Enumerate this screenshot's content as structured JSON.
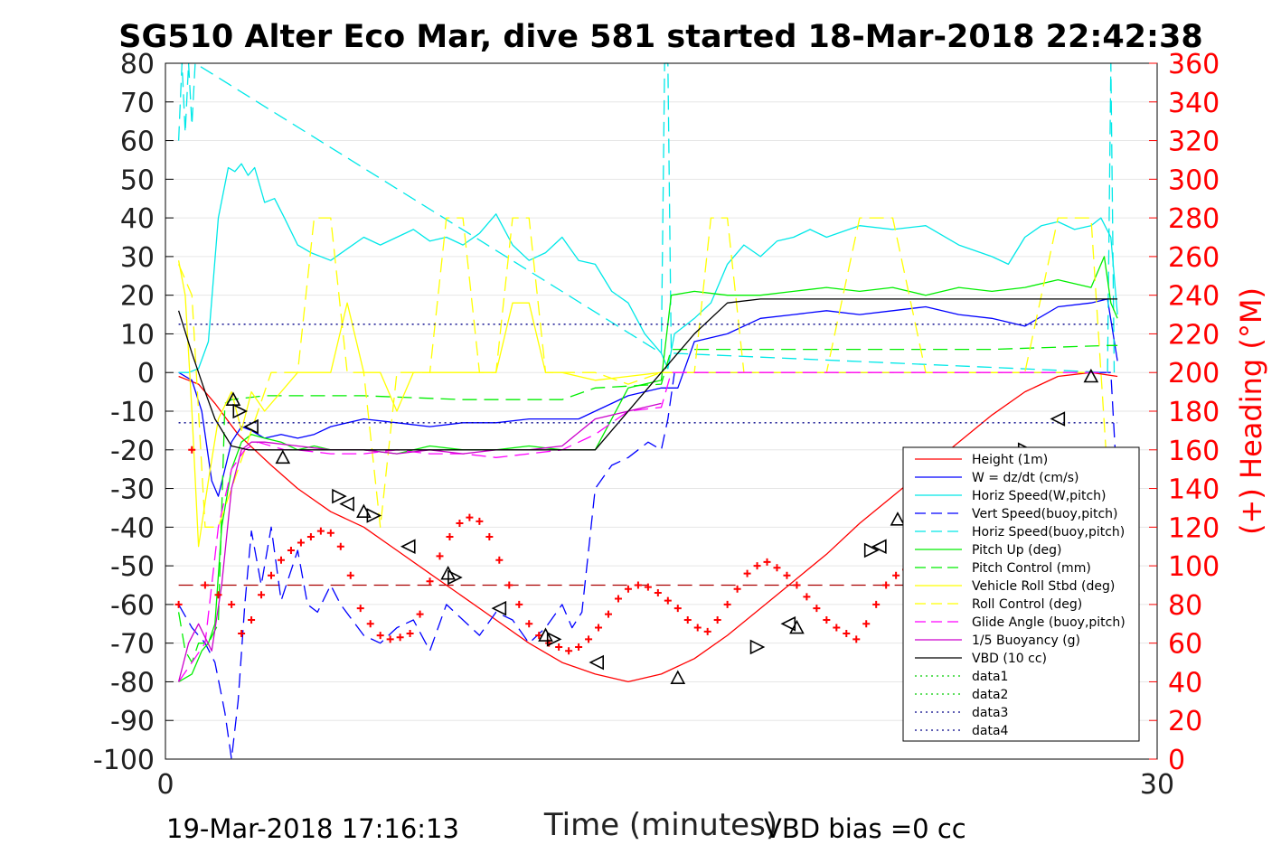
{
  "chart_data": {
    "type": "line",
    "title": "SG510 Alter Eco Mar, dive 581 started 18-Mar-2018 22:42:38",
    "xlabel": "Time (minutes)",
    "ylabel": "",
    "y2label": "(+) Heading (°M)",
    "xlim": [
      0,
      30
    ],
    "ylim": [
      -100,
      80
    ],
    "y2lim": [
      0,
      360
    ],
    "xticks": [
      0,
      30
    ],
    "yticks": [
      -100,
      -90,
      -80,
      -70,
      -60,
      -50,
      -40,
      -30,
      -20,
      -10,
      0,
      10,
      20,
      30,
      40,
      50,
      60,
      70,
      80
    ],
    "y2ticks": [
      0,
      20,
      40,
      60,
      80,
      100,
      120,
      140,
      160,
      180,
      200,
      220,
      240,
      260,
      280,
      300,
      320,
      340,
      360
    ],
    "grid": true,
    "legend_position": "bottom-right",
    "footer_left": "19-Mar-2018 17:16:13",
    "footer_right": "VBD bias =0 cc",
    "colors": {
      "red": "#ff0000",
      "blue": "#0000ff",
      "cyan": "#00ffff",
      "green": "#00ee00",
      "yellow": "#ffff00",
      "magenta": "#ff00ff",
      "black": "#000000",
      "darkred": "#aa0000"
    },
    "series": [
      {
        "name": "Height (1m)",
        "style": "solid",
        "color": "#ff0000",
        "x": [
          0.4,
          0.7,
          1.0,
          1.5,
          2.2,
          3.2,
          4.0,
          5.0,
          6.0,
          7.0,
          8.0,
          9.0,
          10.0,
          11.0,
          12.0,
          13.0,
          14.0,
          15.0,
          16.0,
          17.0,
          18.0,
          19.0,
          20.0,
          21.0,
          22.0,
          23.0,
          24.0,
          25.0,
          26.0,
          27.0,
          28.0,
          28.8
        ],
        "y": [
          -1,
          -2,
          -3,
          -8,
          -16,
          -24,
          -30,
          -36,
          -40,
          -46,
          -52,
          -58,
          -64,
          -70,
          -75,
          -78,
          -80,
          -78,
          -74,
          -68,
          -61,
          -54,
          -47,
          -39,
          -32,
          -25,
          -18,
          -11,
          -5,
          -1,
          0,
          -1
        ]
      },
      {
        "name": "W = dz/dt (cm/s)",
        "style": "solid",
        "color": "#0000ff",
        "x": [
          0.4,
          0.8,
          1.1,
          1.4,
          1.6,
          1.8,
          2.0,
          2.3,
          2.6,
          3.0,
          3.5,
          4.0,
          4.5,
          5.0,
          6.0,
          7.0,
          8.0,
          9.0,
          10.0,
          11.0,
          12.0,
          12.5,
          13.0,
          14.0,
          15.0,
          15.5,
          16.0,
          17.0,
          18.0,
          19.0,
          20.0,
          21.0,
          22.0,
          23.0,
          24.0,
          25.0,
          26.0,
          27.0,
          28.0,
          28.5,
          28.8
        ],
        "y": [
          0,
          -2,
          -10,
          -28,
          -32,
          -25,
          -18,
          -14,
          -15,
          -17,
          -16,
          -17,
          -16,
          -14,
          -12,
          -13,
          -14,
          -13,
          -13,
          -12,
          -12,
          -12,
          -10,
          -6,
          -4,
          -4,
          8,
          10,
          14,
          15,
          16,
          15,
          16,
          17,
          15,
          14,
          12,
          17,
          18,
          19,
          3
        ]
      },
      {
        "name": "Horiz Speed(W,pitch)",
        "style": "solid",
        "color": "#00e8e8",
        "x": [
          0.4,
          0.7,
          1.0,
          1.3,
          1.6,
          1.9,
          2.1,
          2.3,
          2.5,
          2.7,
          3.0,
          3.3,
          3.6,
          4.0,
          4.4,
          5.0,
          5.5,
          6.0,
          6.5,
          7.0,
          7.5,
          8.0,
          8.5,
          9.0,
          9.5,
          10.0,
          10.5,
          11.0,
          11.5,
          12.0,
          12.5,
          13.0,
          13.5,
          14.0,
          14.5,
          15.0,
          15.2,
          15.4,
          15.7,
          16.0,
          16.5,
          17.0,
          17.5,
          18.0,
          18.5,
          19.0,
          19.5,
          20.0,
          21.0,
          22.0,
          23.0,
          24.0,
          25.0,
          25.5,
          26.0,
          26.5,
          27.0,
          27.5,
          28.0,
          28.3,
          28.6,
          28.8
        ],
        "y": [
          0,
          0,
          1,
          8,
          40,
          53,
          52,
          54,
          51,
          53,
          44,
          45,
          40,
          33,
          31,
          29,
          32,
          35,
          33,
          35,
          37,
          34,
          35,
          33,
          36,
          41,
          33,
          29,
          31,
          35,
          29,
          28,
          21,
          18,
          10,
          5,
          1,
          10,
          12,
          14,
          18,
          28,
          33,
          30,
          34,
          35,
          37,
          35,
          38,
          37,
          38,
          33,
          30,
          28,
          35,
          38,
          39,
          37,
          38,
          40,
          35,
          15
        ]
      },
      {
        "name": "Vert Speed(buoy,pitch)",
        "style": "dashed",
        "color": "#0000ff",
        "x": [
          0.4,
          0.8,
          1.2,
          1.5,
          1.8,
          2.0,
          2.2,
          2.4,
          2.6,
          2.9,
          3.2,
          3.5,
          4.0,
          4.3,
          4.6,
          5.0,
          5.3,
          6.0,
          6.5,
          7.0,
          7.5,
          8.0,
          8.5,
          9.0,
          9.5,
          10.0,
          10.5,
          11.0,
          11.5,
          12.0,
          12.3,
          12.6,
          13.0,
          13.5,
          14.0,
          14.3,
          14.6,
          15.0,
          15.2,
          15.4,
          16.0,
          20.0,
          28.0,
          28.6,
          28.8
        ],
        "y": [
          -60,
          -66,
          -70,
          -75,
          -88,
          -100,
          -85,
          -60,
          -41,
          -55,
          -40,
          -59,
          -46,
          -60,
          -62,
          -55,
          -60,
          -68,
          -70,
          -66,
          -64,
          -72,
          -60,
          -64,
          -68,
          -62,
          -64,
          -70,
          -66,
          -60,
          -66,
          -62,
          -30,
          -24,
          -22,
          -20,
          -18,
          -20,
          -12,
          0,
          0,
          0,
          0,
          0,
          -31
        ]
      },
      {
        "name": "Horiz Speed(buoy,pitch)",
        "style": "dashed",
        "color": "#00e8e8",
        "x": [
          0.4,
          0.5,
          0.6,
          0.7,
          0.8,
          0.9,
          15.0,
          15.1,
          15.2,
          15.3,
          28.5,
          28.6,
          28.7
        ],
        "y": [
          60,
          80,
          62,
          80,
          64,
          80,
          5,
          80,
          80,
          5,
          0,
          80,
          0
        ]
      },
      {
        "name": "Pitch Up (deg)",
        "style": "solid",
        "color": "#00ee00",
        "x": [
          0.4,
          0.8,
          1.1,
          1.3,
          1.5,
          1.7,
          2.0,
          2.3,
          2.6,
          3.0,
          3.5,
          4.0,
          4.5,
          5.0,
          6.0,
          7.0,
          8.0,
          9.0,
          10.0,
          11.0,
          12.0,
          13.0,
          14.0,
          15.0,
          15.3,
          16.0,
          17.0,
          18.0,
          19.0,
          20.0,
          21.0,
          22.0,
          23.0,
          24.0,
          25.0,
          26.0,
          27.0,
          28.0,
          28.4,
          28.6,
          28.8
        ],
        "y": [
          -80,
          -78,
          -72,
          -70,
          -65,
          -40,
          -25,
          -18,
          -16,
          -17,
          -18,
          -20,
          -19,
          -20,
          -20,
          -21,
          -19,
          -20,
          -20,
          -19,
          -20,
          -20,
          -4,
          -2,
          20,
          21,
          20,
          20,
          21,
          22,
          21,
          22,
          20,
          22,
          21,
          22,
          24,
          22,
          30,
          18,
          14
        ]
      },
      {
        "name": "Pitch Control (mm)",
        "style": "dashed",
        "color": "#00ee00",
        "x": [
          0.4,
          0.6,
          0.8,
          1.0,
          1.3,
          1.6,
          1.8,
          2.0,
          3.0,
          6.0,
          9.0,
          12.0,
          13.0,
          15.0,
          15.3,
          16.0,
          20.0,
          25.0,
          28.5,
          28.8
        ],
        "y": [
          -62,
          -72,
          -75,
          -70,
          -70,
          -65,
          -8,
          -7,
          -6,
          -6,
          -7,
          -7,
          -4,
          -3,
          6,
          6,
          6,
          6,
          7,
          7
        ]
      },
      {
        "name": "Vehicle Roll Stbd (deg)",
        "style": "solid",
        "color": "#ffff00",
        "x": [
          0.4,
          0.6,
          0.8,
          1.0,
          1.3,
          1.6,
          2.0,
          2.3,
          2.6,
          3.0,
          4.0,
          5.0,
          5.5,
          6.0,
          6.5,
          7.0,
          7.5,
          8.0,
          9.0,
          10.0,
          10.5,
          11.0,
          11.5,
          12.0,
          13.0,
          14.0,
          15.0,
          16.0,
          20.0,
          24.0,
          28.0
        ],
        "y": [
          29,
          20,
          -10,
          -45,
          -28,
          -12,
          -5,
          -15,
          -5,
          -10,
          0,
          0,
          18,
          0,
          0,
          -10,
          0,
          0,
          0,
          0,
          18,
          18,
          0,
          0,
          -2,
          -1,
          0,
          0,
          0,
          0,
          0
        ]
      },
      {
        "name": "Roll Control (deg)",
        "style": "dashed",
        "color": "#ffff00",
        "x": [
          0.4,
          0.8,
          1.2,
          1.6,
          2.0,
          2.4,
          2.8,
          3.2,
          3.6,
          4.0,
          4.5,
          5.0,
          5.5,
          6.0,
          6.5,
          7.0,
          7.5,
          8.0,
          8.5,
          9.0,
          9.5,
          10.0,
          10.5,
          11.0,
          11.5,
          12.0,
          12.5,
          13.0,
          14.0,
          15.0,
          16.0,
          16.5,
          17.0,
          17.5,
          18.0,
          19.0,
          20.0,
          21.0,
          22.0,
          23.0,
          24.0,
          25.0,
          26.0,
          27.0,
          28.0,
          28.6
        ],
        "y": [
          28,
          20,
          -40,
          -40,
          -30,
          -20,
          -10,
          0,
          0,
          0,
          40,
          40,
          0,
          0,
          -40,
          0,
          0,
          0,
          40,
          40,
          0,
          0,
          40,
          40,
          0,
          0,
          0,
          0,
          -3,
          0,
          0,
          40,
          40,
          0,
          0,
          0,
          0,
          40,
          40,
          0,
          0,
          0,
          0,
          40,
          40,
          -40
        ]
      },
      {
        "name": "Glide Angle (buoy,pitch)",
        "style": "dashed",
        "color": "#ff00ff",
        "x": [
          0.4,
          0.8,
          1.2,
          1.6,
          2.0,
          2.4,
          2.8,
          3.2,
          3.6,
          4.0,
          5.0,
          6.0,
          7.0,
          8.0,
          9.0,
          10.0,
          11.0,
          12.0,
          13.0,
          14.0,
          15.0,
          15.3,
          16.0,
          20.0,
          25.0,
          28.5
        ],
        "y": [
          -80,
          -75,
          -70,
          -40,
          -25,
          -20,
          -18,
          -19,
          -20,
          -20,
          -21,
          -21,
          -20,
          -21,
          -21,
          -22,
          -21,
          -20,
          -16,
          -10,
          -9,
          0,
          0,
          0,
          0,
          0
        ]
      },
      {
        "name": "1/5 Buoyancy (g)",
        "style": "solid",
        "color": "#cc00cc",
        "x": [
          0.4,
          0.7,
          1.0,
          1.4,
          1.7,
          2.0,
          2.3,
          2.6,
          3.0,
          4.0,
          5.0,
          6.0,
          7.0,
          8.0,
          9.0,
          10.0,
          11.0,
          12.0,
          13.0,
          14.0,
          15.0
        ],
        "y": [
          -80,
          -70,
          -65,
          -72,
          -55,
          -30,
          -20,
          -18,
          -18,
          -19,
          -20,
          -20,
          -21,
          -20,
          -21,
          -20,
          -20,
          -19,
          -12,
          -10,
          -8
        ]
      },
      {
        "name": "VBD (10 cc)",
        "style": "solid",
        "color": "#000000",
        "x": [
          0.4,
          0.8,
          1.2,
          1.5,
          2.0,
          2.5,
          3.0,
          8.0,
          12.0,
          13.0,
          15.0,
          16.0,
          17.0,
          18.0,
          22.0,
          26.0,
          28.8
        ],
        "y": [
          16,
          5,
          -5,
          -12,
          -19,
          -20,
          -20,
          -20,
          -20,
          -20,
          0,
          10,
          18,
          19,
          19,
          19,
          19
        ]
      },
      {
        "name": "data1",
        "style": "dotted",
        "color": "#00cc00",
        "x": [],
        "y": []
      },
      {
        "name": "data2",
        "style": "dotted",
        "color": "#00cc00",
        "x": [],
        "y": []
      },
      {
        "name": "data3",
        "style": "dotted",
        "color": "#000088",
        "x": [
          0.4,
          28.8
        ],
        "y": [
          12.5,
          12.5
        ]
      },
      {
        "name": "data4",
        "style": "dotted",
        "color": "#000088",
        "x": [
          0.4,
          28.8
        ],
        "y": [
          -13,
          -13
        ]
      }
    ],
    "heading": {
      "axis": "right",
      "color": "#ff0000",
      "marker": "+",
      "x": [
        0.4,
        0.8,
        1.2,
        1.6,
        2.0,
        2.3,
        2.6,
        2.9,
        3.2,
        3.5,
        3.8,
        4.1,
        4.4,
        4.7,
        5.0,
        5.3,
        5.6,
        5.9,
        6.2,
        6.5,
        6.8,
        7.1,
        7.4,
        7.7,
        8.0,
        8.3,
        8.6,
        8.9,
        9.2,
        9.5,
        9.8,
        10.1,
        10.4,
        10.7,
        11.0,
        11.3,
        11.6,
        11.9,
        12.2,
        12.5,
        12.8,
        13.1,
        13.4,
        13.7,
        14.0,
        14.3,
        14.6,
        14.9,
        15.2,
        15.5,
        15.8,
        16.1,
        16.4,
        16.7,
        17.0,
        17.3,
        17.6,
        17.9,
        18.2,
        18.5,
        18.8,
        19.1,
        19.4,
        19.7,
        20.0,
        20.3,
        20.6,
        20.9,
        21.2,
        21.5,
        21.8,
        22.1,
        22.4,
        22.7,
        23.0,
        23.3,
        23.6,
        23.9,
        24.2,
        24.5,
        24.8,
        25.1,
        25.4,
        25.7,
        26.0,
        26.3,
        26.6,
        26.9,
        27.2,
        27.5,
        27.8,
        28.1,
        28.4,
        28.7
      ],
      "y": [
        80,
        160,
        90,
        85,
        80,
        65,
        72,
        85,
        95,
        103,
        108,
        112,
        115,
        118,
        117,
        110,
        95,
        78,
        70,
        64,
        62,
        63,
        65,
        75,
        92,
        105,
        115,
        122,
        125,
        123,
        115,
        103,
        90,
        80,
        70,
        64,
        60,
        58,
        56,
        58,
        62,
        68,
        75,
        83,
        88,
        90,
        89,
        86,
        82,
        78,
        72,
        68,
        66,
        72,
        80,
        88,
        96,
        100,
        102,
        99,
        95,
        90,
        84,
        78,
        72,
        68,
        65,
        62,
        70,
        80,
        90,
        95,
        98,
        100,
        100,
        98,
        93,
        85,
        78,
        72,
        68,
        72,
        80,
        90,
        95,
        100,
        103,
        105,
        104,
        100,
        110,
        115,
        120,
        142
      ]
    },
    "turn_markers": {
      "color": "#000000",
      "x": [
        2.05,
        2.25,
        2.6,
        3.55,
        5.25,
        5.5,
        6.0,
        6.3,
        7.35,
        8.55,
        8.75,
        10.1,
        11.5,
        11.75,
        13.05,
        15.5,
        17.9,
        18.85,
        19.1,
        21.35,
        21.6,
        22.15,
        26.0,
        27.0,
        28.0
      ],
      "y": [
        -7,
        -10,
        -14,
        -22,
        -32,
        -34,
        -36,
        -37,
        -45,
        -52,
        -53,
        -61,
        -68,
        -69,
        -75,
        -79,
        -71,
        -65,
        -66,
        -46,
        -45,
        -38,
        -20,
        -12,
        -1
      ]
    },
    "reference_line": {
      "y": -55,
      "color": "#aa0000",
      "style": "dashed",
      "x": [
        0.4,
        28.8
      ]
    }
  }
}
